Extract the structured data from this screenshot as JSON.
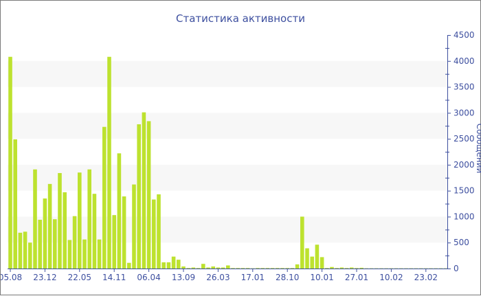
{
  "chart_data": {
    "type": "bar",
    "title": "Статистика активности",
    "xlabel": "",
    "ylabel": "Сообщений",
    "ylim": [
      0,
      4500
    ],
    "yticks": [
      0,
      500,
      1000,
      1500,
      2000,
      2500,
      3000,
      3500,
      4000,
      4500
    ],
    "y_axis_position": "right",
    "grid": "alternating horizontal bands",
    "x_tick_labels": [
      "05.08",
      "23.12",
      "22.05",
      "14.11",
      "06.04",
      "13.09",
      "26.03",
      "17.01",
      "28.10",
      "10.01",
      "27.01",
      "10.02",
      "23.02"
    ],
    "x_tick_every_n_bars": 7,
    "values": [
      4080,
      2490,
      690,
      710,
      500,
      1910,
      940,
      1350,
      1630,
      950,
      1840,
      1470,
      550,
      1010,
      1850,
      560,
      1910,
      1440,
      560,
      2730,
      4080,
      1030,
      2220,
      1390,
      110,
      1620,
      2780,
      3010,
      2840,
      1330,
      1430,
      120,
      120,
      230,
      170,
      40,
      10,
      20,
      10,
      90,
      20,
      40,
      20,
      20,
      60,
      10,
      10,
      10,
      10,
      5,
      10,
      10,
      10,
      10,
      10,
      10,
      10,
      10,
      80,
      1000,
      390,
      230,
      460,
      220,
      10,
      30,
      10,
      20,
      10,
      20,
      10,
      15,
      5,
      5,
      5,
      5,
      5,
      5,
      5,
      5,
      5,
      5,
      5,
      5,
      5,
      5,
      5,
      5,
      5
    ],
    "colors": {
      "bar": "#bde22f",
      "axis": "#3d4f9f",
      "band": "#f7f7f7",
      "text": "#3d4f9f"
    }
  }
}
